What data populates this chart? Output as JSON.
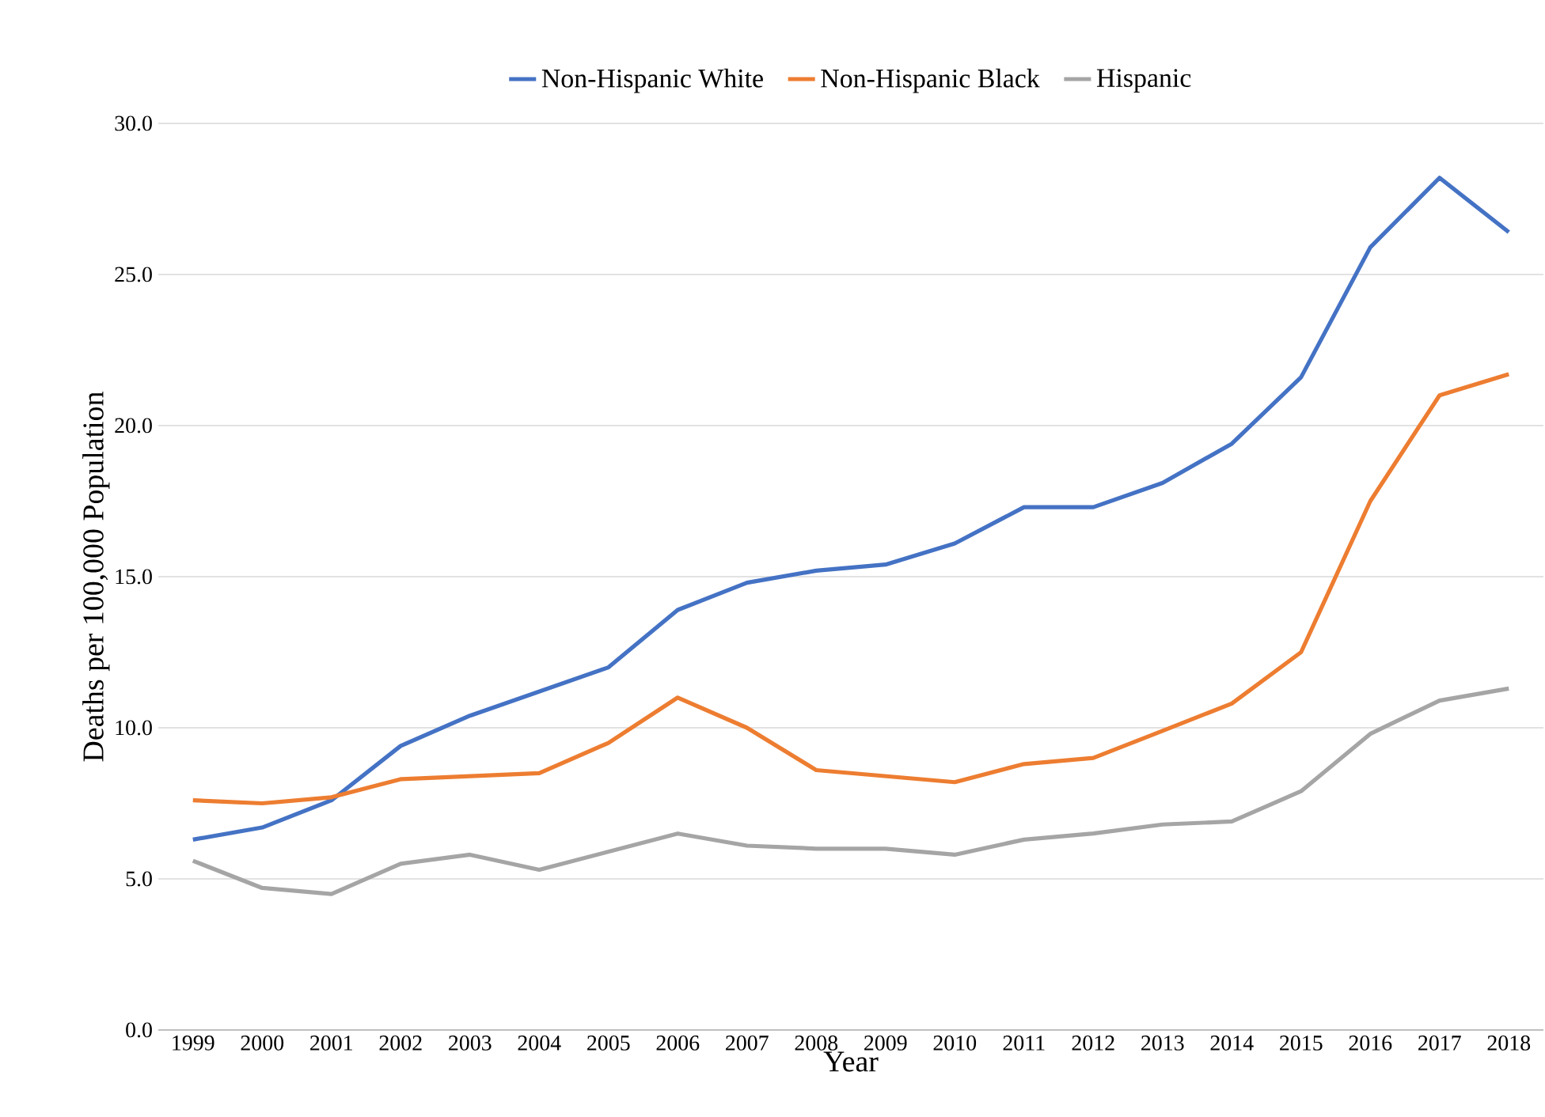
{
  "chart_data": {
    "type": "line",
    "xlabel": "Year",
    "ylabel": "Deaths per 100,000 Population",
    "categories": [
      "1999",
      "2000",
      "2001",
      "2002",
      "2003",
      "2004",
      "2005",
      "2006",
      "2007",
      "2008",
      "2009",
      "2010",
      "2011",
      "2012",
      "2013",
      "2014",
      "2015",
      "2016",
      "2017",
      "2018"
    ],
    "series": [
      {
        "name": "Non-Hispanic White",
        "color": "#4472c4",
        "values": [
          6.3,
          6.7,
          7.6,
          9.4,
          10.4,
          11.2,
          12.0,
          13.9,
          14.8,
          15.2,
          15.4,
          16.1,
          17.3,
          17.3,
          18.1,
          19.4,
          21.6,
          25.9,
          28.2,
          26.4
        ]
      },
      {
        "name": "Non-Hispanic Black",
        "color": "#ed7d31",
        "values": [
          7.6,
          7.5,
          7.7,
          8.3,
          8.4,
          8.5,
          9.5,
          11.0,
          10.0,
          8.6,
          8.4,
          8.2,
          8.8,
          9.0,
          9.9,
          10.8,
          12.5,
          17.5,
          21.0,
          21.7
        ]
      },
      {
        "name": "Hispanic",
        "color": "#a5a5a5",
        "values": [
          5.6,
          4.7,
          4.5,
          5.5,
          5.8,
          5.3,
          5.9,
          6.5,
          6.1,
          6.0,
          6.0,
          5.8,
          6.3,
          6.5,
          6.8,
          6.9,
          7.9,
          9.8,
          10.9,
          11.3
        ]
      }
    ],
    "ylim": [
      0,
      30
    ],
    "yticks": [
      {
        "value": 0,
        "label": "0.0"
      },
      {
        "value": 5,
        "label": "5.0"
      },
      {
        "value": 10,
        "label": "10.0"
      },
      {
        "value": 15,
        "label": "15.0"
      },
      {
        "value": 20,
        "label": "20.0"
      },
      {
        "value": 25,
        "label": "25.0"
      },
      {
        "value": 30,
        "label": "30.0"
      }
    ],
    "grid": "y",
    "legend": "top",
    "marker": "none",
    "line_style": "solid"
  }
}
